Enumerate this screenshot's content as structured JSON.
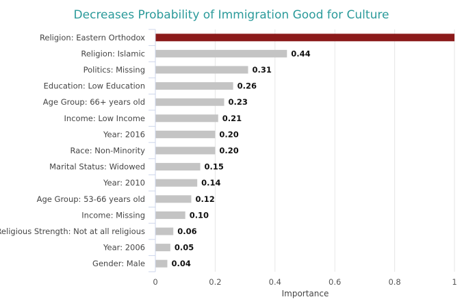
{
  "chart_data": {
    "type": "bar",
    "orientation": "horizontal",
    "title": "Decreases Probability of Immigration Good for Culture",
    "xlabel": "Importance",
    "ylabel": "",
    "xlim": [
      0,
      1
    ],
    "xticks": [
      "0",
      "0.2",
      "0.4",
      "0.6",
      "0.8",
      "1"
    ],
    "grid": true,
    "categories": [
      "Religion: Eastern Orthodox",
      "Religion: Islamic",
      "Politics: Missing",
      "Education: Low Education",
      "Age Group: 66+ years old",
      "Income: Low Income",
      "Year: 2016",
      "Race: Non-Minority",
      "Marital Status: Widowed",
      "Year: 2010",
      "Age Group: 53-66 years old",
      "Income: Missing",
      "Religious Strength: Not at all religious",
      "Year: 2006",
      "Gender: Male"
    ],
    "values": [
      1.0,
      0.44,
      0.31,
      0.26,
      0.23,
      0.21,
      0.2,
      0.2,
      0.15,
      0.14,
      0.12,
      0.1,
      0.06,
      0.05,
      0.04
    ],
    "value_labels": [
      "",
      "0.44",
      "0.31",
      "0.26",
      "0.23",
      "0.21",
      "0.20",
      "0.20",
      "0.15",
      "0.14",
      "0.12",
      "0.10",
      "0.06",
      "0.05",
      "0.04"
    ],
    "colors": {
      "highlight": "#8b1a1a",
      "bar": "#c4c4c4",
      "grid": "#e6e6e6",
      "axis": "#ccd6eb"
    }
  }
}
